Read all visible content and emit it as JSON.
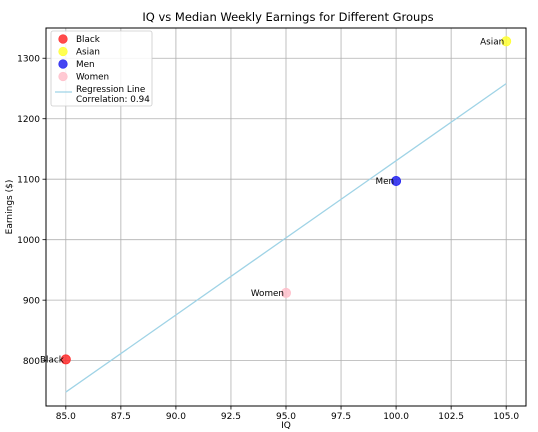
{
  "chart_data": {
    "type": "scatter",
    "title": "IQ vs Median Weekly Earnings for Different Groups",
    "xlabel": "IQ",
    "ylabel": "Earnings ($)",
    "xlim": [
      84.1,
      105.9
    ],
    "ylim": [
      725,
      1350
    ],
    "xticks": [
      "85.0",
      "87.5",
      "90.0",
      "92.5",
      "95.0",
      "97.5",
      "100.0",
      "102.5",
      "105.0"
    ],
    "xtick_values": [
      85.0,
      87.5,
      90.0,
      92.5,
      95.0,
      97.5,
      100.0,
      102.5,
      105.0
    ],
    "yticks": [
      "800",
      "900",
      "1000",
      "1100",
      "1200",
      "1300"
    ],
    "ytick_values": [
      800,
      900,
      1000,
      1100,
      1200,
      1300
    ],
    "grid": true,
    "legend_position": "top-left",
    "points": [
      {
        "name": "Black",
        "x": 85,
        "y": 802,
        "color": "#ff2b2b",
        "label": "Black"
      },
      {
        "name": "Asian",
        "x": 105,
        "y": 1328,
        "color": "#ffff33",
        "label": "Asian"
      },
      {
        "name": "Men",
        "x": 100,
        "y": 1097,
        "color": "#2323f0",
        "label": "Men"
      },
      {
        "name": "Women",
        "x": 95,
        "y": 912,
        "color": "#ffc0cb",
        "label": "Women"
      }
    ],
    "regression": {
      "name": "Regression Line",
      "note": "Correlation: 0.94",
      "color": "#9fd3e6",
      "x": [
        85,
        105
      ],
      "y": [
        748,
        1258
      ]
    }
  }
}
